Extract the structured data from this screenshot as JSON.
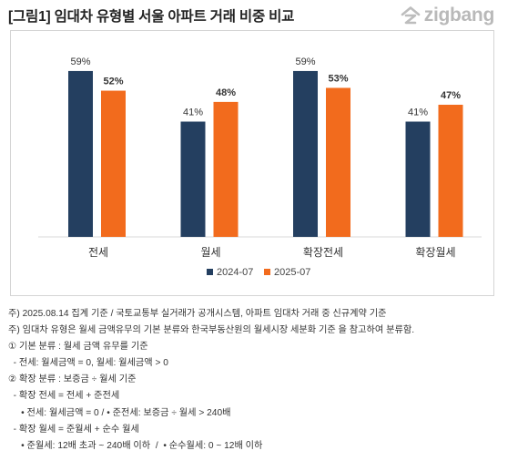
{
  "header": {
    "title": "[그림1] 임대차 유형별 서울 아파트 거래 비중 비교",
    "logo_text": "zigbang",
    "logo_icon": "zigbang-house-icon"
  },
  "chart_data": {
    "type": "bar",
    "categories": [
      "전세",
      "월세",
      "확장전세",
      "확장월세"
    ],
    "series": [
      {
        "name": "2024-07",
        "values": [
          59,
          41,
          59,
          41
        ],
        "labels": [
          "59%",
          "41%",
          "59%",
          "41%"
        ],
        "color": "#243f60",
        "label_bold": false
      },
      {
        "name": "2025-07",
        "values": [
          52,
          48,
          53,
          47
        ],
        "labels": [
          "52%",
          "48%",
          "53%",
          "47%"
        ],
        "color": "#f26b1d",
        "label_bold": true
      }
    ],
    "ylim": [
      0,
      70
    ],
    "grid": false,
    "legend_position": "bottom",
    "title": "",
    "xlabel": "",
    "ylabel": ""
  },
  "notes": [
    "주) 2025.08.14 집계 기준 / 국토교통부 실거래가 공개시스템, 아파트 임대차 거래 중 신규계약 기준",
    "주) 임대차 유형은 월세 금액유무의 기본 분류와 한국부동산원의 월세시장 세분화 기준 을 참고하여 분류함.",
    "① 기본 분류 : 월세 금액 유무를 기준",
    "  - 전세: 월세금액 = 0, 월세: 월세금액 > 0",
    "② 확장 분류 : 보증금 ÷ 월세 기준",
    "  - 확장 전세 = 전세 + 준전세",
    "     • 전세: 월세금액 = 0 / • 준전세: 보증금 ÷ 월세 > 240배",
    "  - 확장 월세 = 준월세 + 순수 월세",
    "     • 준월세: 12배 초과 ~ 240배 이하  /  • 순수월세: 0 ~ 12배 이하"
  ]
}
